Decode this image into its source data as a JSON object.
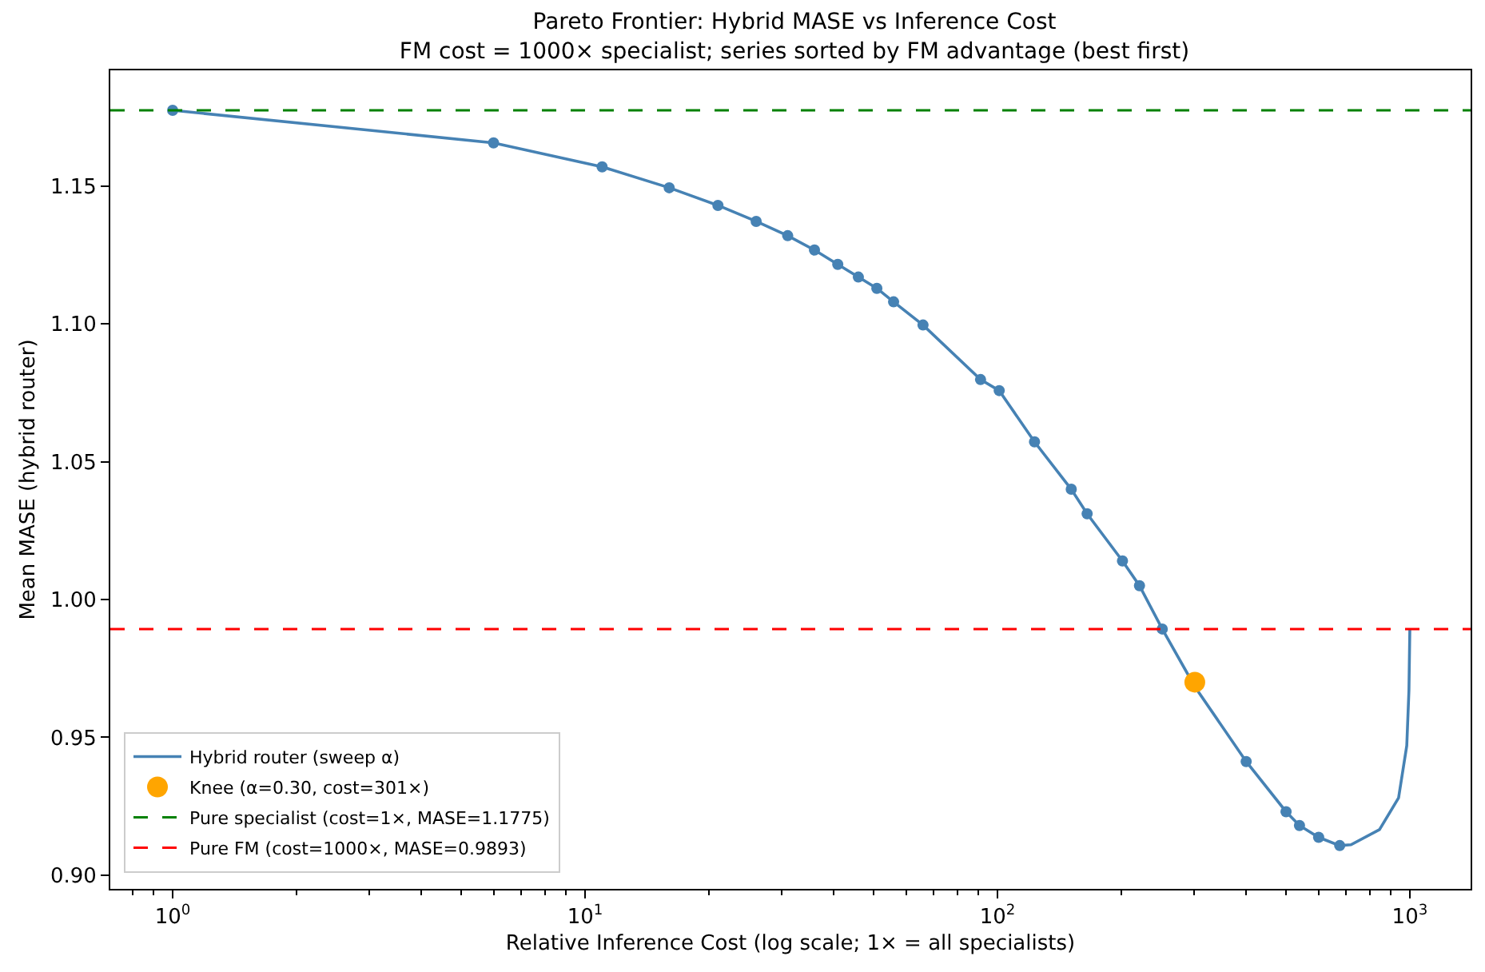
{
  "chart_data": {
    "type": "line",
    "title": "Pareto Frontier: Hybrid MASE vs Inference Cost",
    "subtitle": "FM cost = 1000× specialist; series sorted by FM advantage (best first)",
    "xlabel": "Relative Inference Cost (log scale; 1× = all specialists)",
    "ylabel": "Mean MASE (hybrid router)",
    "log": "x",
    "xlim": [
      0.706,
      1404
    ],
    "xticks": [
      {
        "value": 1,
        "label": "10$^{0}$"
      },
      {
        "value": 10,
        "label": "10$^{1}$"
      },
      {
        "value": 100,
        "label": "10$^{2}$"
      },
      {
        "value": 1000,
        "label": "10$^{3}$"
      }
    ],
    "ylim": [
      0.895,
      1.192
    ],
    "yticks": [
      {
        "value": 0.9,
        "label": "0.90"
      },
      {
        "value": 0.95,
        "label": "0.95"
      },
      {
        "value": 1.0,
        "label": "1.00"
      },
      {
        "value": 1.05,
        "label": "1.05"
      },
      {
        "value": 1.1,
        "label": "1.10"
      },
      {
        "value": 1.15,
        "label": "1.15"
      }
    ],
    "legend": "bottom left",
    "series": [
      {
        "name": "Hybrid router (sweep α)",
        "marker": "none",
        "color": "#4682b4",
        "x": [
          1,
          6,
          11,
          16,
          21,
          26,
          31,
          36,
          41,
          46,
          51,
          56,
          66,
          91,
          101,
          123,
          151,
          165,
          201,
          221,
          251,
          301,
          401,
          501,
          540,
          601,
          676,
          720,
          844,
          939,
          983,
          995,
          1000
        ],
        "values": [
          1.1775,
          1.1657,
          1.157,
          1.1494,
          1.143,
          1.1372,
          1.132,
          1.1268,
          1.1216,
          1.117,
          1.1129,
          1.108,
          1.0996,
          1.0798,
          1.0758,
          1.0572,
          1.04,
          1.0311,
          1.014,
          1.005,
          0.9893,
          0.9684,
          0.9412,
          0.923,
          0.918,
          0.9137,
          0.9107,
          0.911,
          0.9165,
          0.928,
          0.947,
          0.967,
          0.9893
        ]
      },
      {
        "type": "scatter",
        "marker": "circle",
        "color": "#4682b4",
        "x": [
          1,
          6,
          11,
          16,
          21,
          26,
          31,
          36,
          41,
          46,
          51,
          56,
          66,
          91,
          101,
          123,
          151,
          165,
          201,
          221,
          251,
          401,
          501,
          540,
          601,
          676
        ],
        "values": [
          1.1775,
          1.1657,
          1.157,
          1.1494,
          1.143,
          1.1372,
          1.132,
          1.1268,
          1.1216,
          1.117,
          1.1129,
          1.108,
          1.0996,
          1.0798,
          1.0758,
          1.0572,
          1.04,
          1.0311,
          1.014,
          1.005,
          0.9893,
          0.9412,
          0.923,
          0.918,
          0.9137,
          0.9107
        ]
      },
      {
        "name": "Knee (α=0.30, cost=301×)",
        "type": "scatter",
        "marker": "circle",
        "color": "#ffa500",
        "x": [
          301
        ],
        "values": [
          0.97
        ]
      }
    ],
    "ref_lines": [
      {
        "axis": "y",
        "value": 1.1775,
        "label": "Pure specialist (cost=1×, MASE=1.1775)",
        "color": "#008000",
        "line_style": "dashed"
      },
      {
        "axis": "y",
        "value": 0.9893,
        "label": "Pure FM (cost=1000×, MASE=0.9893)",
        "color": "#ff0000",
        "line_style": "dashed"
      }
    ]
  }
}
